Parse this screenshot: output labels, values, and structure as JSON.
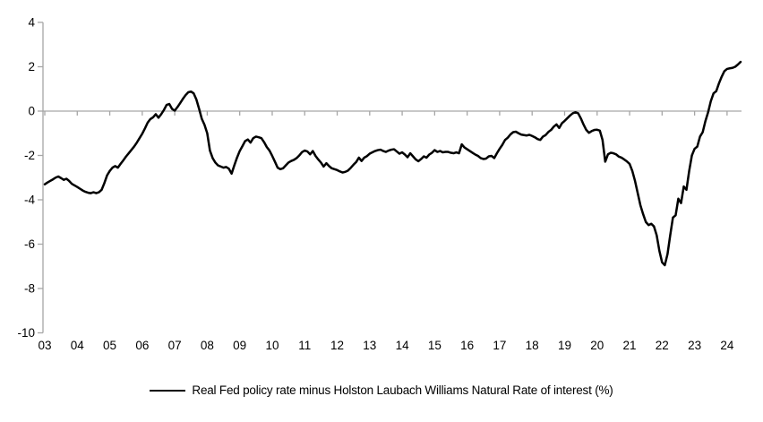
{
  "legend": {
    "label": "Real Fed policy rate minus Holston Laubach Williams Natural Rate of interest (%)"
  },
  "colors": {
    "series": "#000000",
    "axis": "#a6a6a6",
    "text": "#000000",
    "background": "#ffffff"
  },
  "chart_data": {
    "type": "line",
    "title": "",
    "xlabel": "",
    "ylabel": "",
    "legend_position": "bottom",
    "grid": "zero-line-only",
    "ylim": [
      -10,
      4
    ],
    "yticks": [
      4,
      2,
      0,
      -2,
      -4,
      -6,
      -8,
      -10
    ],
    "x_tick_labels": [
      "03",
      "04",
      "05",
      "06",
      "07",
      "08",
      "09",
      "10",
      "11",
      "12",
      "13",
      "14",
      "15",
      "16",
      "17",
      "18",
      "19",
      "20",
      "21",
      "22",
      "23",
      "24"
    ],
    "frequency": "monthly",
    "x_start": "2003-01",
    "x_end": "2024-06",
    "series": [
      {
        "name": "Real Fed policy rate minus Holston Laubach Williams Natural Rate of interest (%)",
        "values": [
          -3.3,
          -3.22,
          -3.15,
          -3.08,
          -3.0,
          -2.95,
          -3.02,
          -3.1,
          -3.05,
          -3.15,
          -3.28,
          -3.35,
          -3.42,
          -3.5,
          -3.58,
          -3.64,
          -3.68,
          -3.7,
          -3.66,
          -3.7,
          -3.66,
          -3.55,
          -3.25,
          -2.9,
          -2.7,
          -2.55,
          -2.48,
          -2.55,
          -2.38,
          -2.22,
          -2.05,
          -1.9,
          -1.75,
          -1.6,
          -1.42,
          -1.22,
          -1.02,
          -0.78,
          -0.52,
          -0.36,
          -0.28,
          -0.14,
          -0.3,
          -0.14,
          0.05,
          0.28,
          0.32,
          0.1,
          0.02,
          0.18,
          0.36,
          0.55,
          0.72,
          0.85,
          0.88,
          0.8,
          0.52,
          0.1,
          -0.35,
          -0.62,
          -1.0,
          -1.78,
          -2.12,
          -2.32,
          -2.45,
          -2.5,
          -2.55,
          -2.52,
          -2.6,
          -2.82,
          -2.45,
          -2.1,
          -1.8,
          -1.58,
          -1.35,
          -1.28,
          -1.42,
          -1.22,
          -1.15,
          -1.18,
          -1.22,
          -1.4,
          -1.62,
          -1.78,
          -2.02,
          -2.28,
          -2.55,
          -2.62,
          -2.58,
          -2.45,
          -2.32,
          -2.25,
          -2.2,
          -2.12,
          -2.0,
          -1.85,
          -1.78,
          -1.82,
          -1.95,
          -1.8,
          -2.02,
          -2.18,
          -2.32,
          -2.5,
          -2.35,
          -2.48,
          -2.58,
          -2.62,
          -2.66,
          -2.72,
          -2.77,
          -2.74,
          -2.68,
          -2.56,
          -2.42,
          -2.3,
          -2.1,
          -2.25,
          -2.1,
          -2.03,
          -1.92,
          -1.86,
          -1.8,
          -1.76,
          -1.74,
          -1.8,
          -1.84,
          -1.78,
          -1.74,
          -1.72,
          -1.82,
          -1.92,
          -1.86,
          -1.96,
          -2.08,
          -1.9,
          -2.04,
          -2.18,
          -2.26,
          -2.16,
          -2.04,
          -2.1,
          -1.96,
          -1.88,
          -1.76,
          -1.84,
          -1.8,
          -1.86,
          -1.84,
          -1.84,
          -1.88,
          -1.9,
          -1.86,
          -1.9,
          -1.5,
          -1.64,
          -1.72,
          -1.8,
          -1.88,
          -1.96,
          -2.02,
          -2.12,
          -2.16,
          -2.14,
          -2.04,
          -2.02,
          -2.12,
          -1.9,
          -1.7,
          -1.52,
          -1.3,
          -1.2,
          -1.05,
          -0.95,
          -0.93,
          -1.0,
          -1.06,
          -1.08,
          -1.1,
          -1.07,
          -1.12,
          -1.18,
          -1.26,
          -1.3,
          -1.15,
          -1.08,
          -0.94,
          -0.85,
          -0.7,
          -0.6,
          -0.76,
          -0.55,
          -0.44,
          -0.32,
          -0.2,
          -0.1,
          -0.05,
          -0.1,
          -0.33,
          -0.61,
          -0.85,
          -0.98,
          -0.9,
          -0.85,
          -0.84,
          -0.88,
          -1.3,
          -2.28,
          -1.95,
          -1.88,
          -1.9,
          -1.95,
          -2.05,
          -2.1,
          -2.18,
          -2.27,
          -2.38,
          -2.7,
          -3.15,
          -3.7,
          -4.25,
          -4.65,
          -5.0,
          -5.14,
          -5.08,
          -5.2,
          -5.6,
          -6.3,
          -6.82,
          -6.95,
          -6.45,
          -5.6,
          -4.8,
          -4.7,
          -3.95,
          -4.15,
          -3.4,
          -3.55,
          -2.7,
          -2.0,
          -1.7,
          -1.6,
          -1.15,
          -0.95,
          -0.45,
          -0.05,
          0.45,
          0.8,
          0.9,
          1.25,
          1.55,
          1.8,
          1.9,
          1.93,
          1.95,
          2.0,
          2.1,
          2.22
        ]
      }
    ]
  }
}
